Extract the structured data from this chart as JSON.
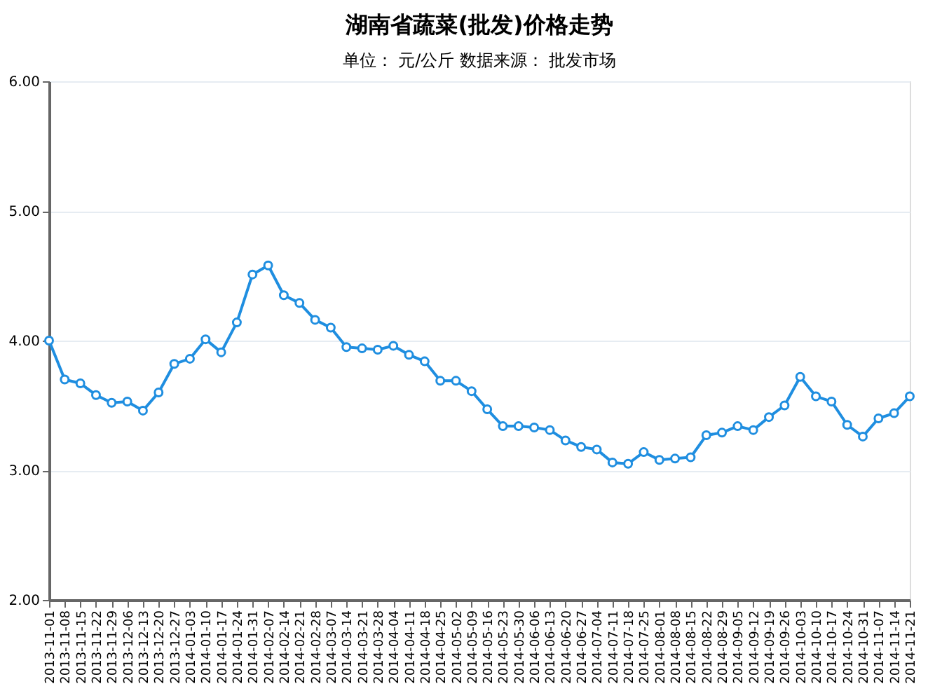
{
  "chart_data": {
    "type": "line",
    "title": "湖南省蔬菜(批发)价格走势",
    "subtitle": "单位： 元/公斤      数据来源： 批发市场",
    "categories": [
      "2013-11-01",
      "2013-11-08",
      "2013-11-15",
      "2013-11-22",
      "2013-11-29",
      "2013-12-06",
      "2013-12-13",
      "2013-12-20",
      "2013-12-27",
      "2014-01-03",
      "2014-01-10",
      "2014-01-17",
      "2014-01-24",
      "2014-01-31",
      "2014-02-07",
      "2014-02-14",
      "2014-02-21",
      "2014-02-28",
      "2014-03-07",
      "2014-03-14",
      "2014-03-21",
      "2014-03-28",
      "2014-04-04",
      "2014-04-11",
      "2014-04-18",
      "2014-04-25",
      "2014-05-02",
      "2014-05-09",
      "2014-05-16",
      "2014-05-23",
      "2014-05-30",
      "2014-06-06",
      "2014-06-13",
      "2014-06-20",
      "2014-06-27",
      "2014-07-04",
      "2014-07-11",
      "2014-07-18",
      "2014-07-25",
      "2014-08-01",
      "2014-08-08",
      "2014-08-15",
      "2014-08-22",
      "2014-08-29",
      "2014-09-05",
      "2014-09-12",
      "2014-09-19",
      "2014-09-26",
      "2014-10-03",
      "2014-10-10",
      "2014-10-17",
      "2014-10-24",
      "2014-10-31",
      "2014-11-07",
      "2014-11-14",
      "2014-11-21"
    ],
    "series": [
      {
        "color": "#1f8ee0",
        "values": [
          4.0,
          3.7,
          3.67,
          3.58,
          3.52,
          3.53,
          3.46,
          3.6,
          3.82,
          3.86,
          4.01,
          3.91,
          4.14,
          4.51,
          4.58,
          4.35,
          4.29,
          4.16,
          4.1,
          3.95,
          3.94,
          3.93,
          3.96,
          3.89,
          3.84,
          3.69,
          3.69,
          3.61,
          3.47,
          3.34,
          3.34,
          3.33,
          3.31,
          3.23,
          3.18,
          3.16,
          3.06,
          3.05,
          3.14,
          3.08,
          3.09,
          3.1,
          3.27,
          3.29,
          3.34,
          3.31,
          3.41,
          3.5,
          3.72,
          3.57,
          3.53,
          3.35,
          3.26,
          3.4,
          3.44,
          3.57
        ]
      }
    ],
    "ylim": [
      2,
      6
    ],
    "yticks": [
      {
        "value": 2,
        "label": "2.00"
      },
      {
        "value": 3,
        "label": "3.00"
      },
      {
        "value": 4,
        "label": "4.00"
      },
      {
        "value": 5,
        "label": "5.00"
      },
      {
        "value": 6,
        "label": "6.00"
      }
    ],
    "grid": "y",
    "marker": "circle",
    "line_style": "solid"
  }
}
